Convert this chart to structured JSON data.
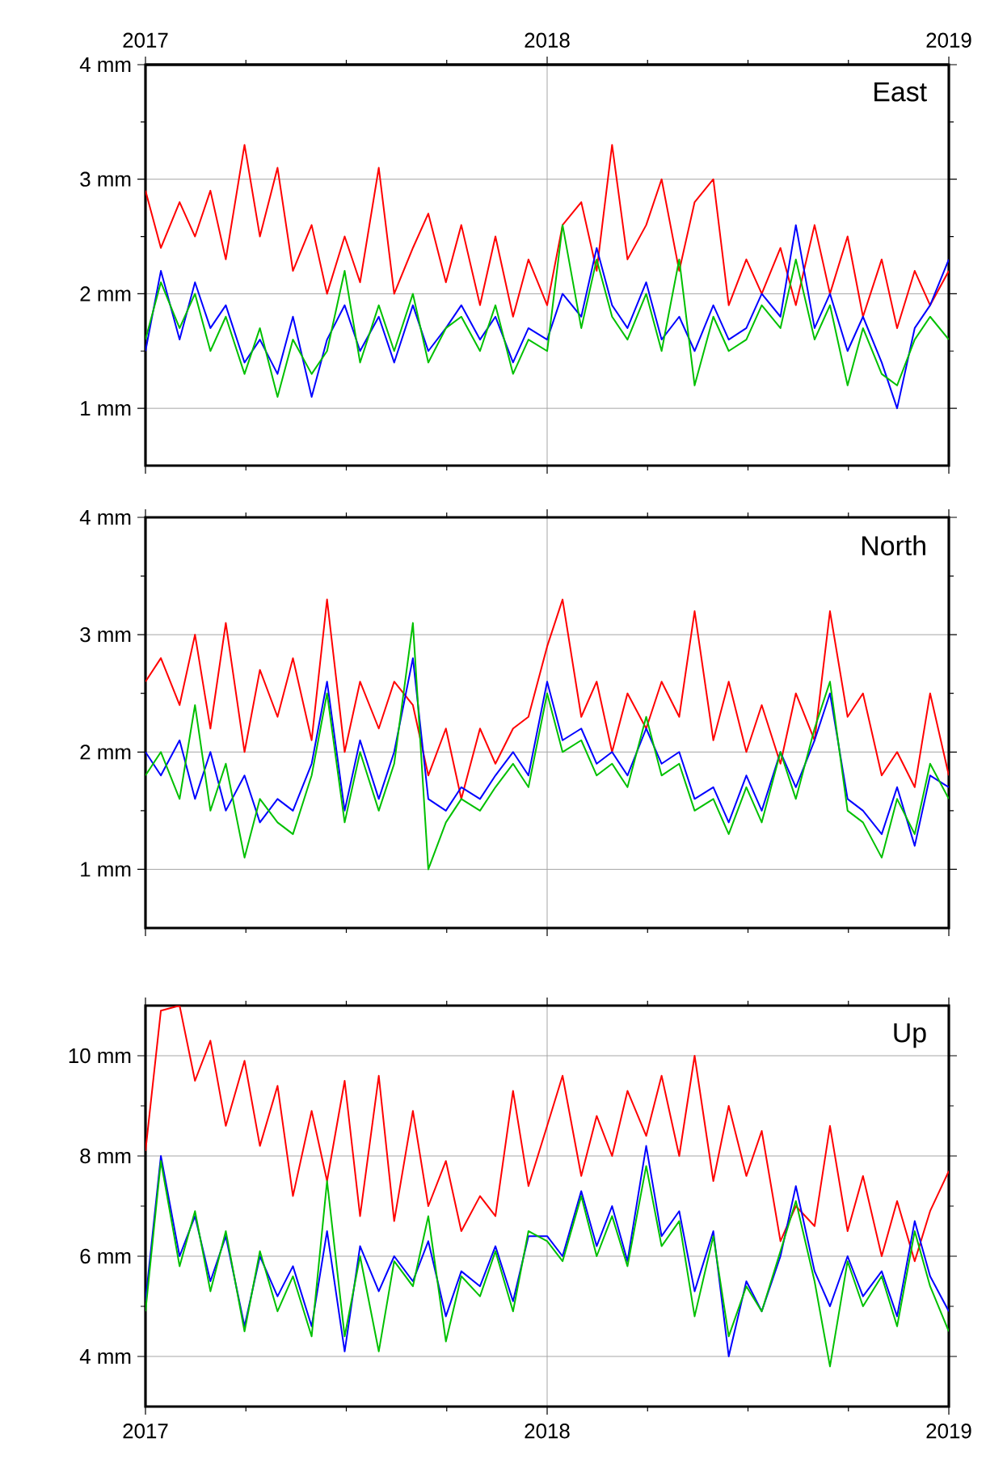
{
  "chart_data": [
    {
      "type": "line",
      "title": "East",
      "x": [
        "2017-01-01",
        "2017-01-15",
        "2017-02-01",
        "2017-02-15",
        "2017-03-01",
        "2017-03-15",
        "2017-04-01",
        "2017-04-15",
        "2017-05-01",
        "2017-05-15",
        "2017-06-01",
        "2017-06-15",
        "2017-07-01",
        "2017-07-15",
        "2017-08-01",
        "2017-08-15",
        "2017-09-01",
        "2017-09-15",
        "2017-10-01",
        "2017-10-15",
        "2017-11-01",
        "2017-11-15",
        "2017-12-01",
        "2017-12-15",
        "2018-01-01",
        "2018-01-15",
        "2018-02-01",
        "2018-02-15",
        "2018-03-01",
        "2018-03-15",
        "2018-04-01",
        "2018-04-15",
        "2018-05-01",
        "2018-05-15",
        "2018-06-01",
        "2018-06-15",
        "2018-07-01",
        "2018-07-15",
        "2018-08-01",
        "2018-08-15",
        "2018-09-01",
        "2018-09-15",
        "2018-10-01",
        "2018-10-15",
        "2018-11-01",
        "2018-11-15",
        "2018-12-01",
        "2018-12-15",
        "2019-01-01"
      ],
      "series": [
        {
          "color": "#ff0000",
          "values": [
            2.9,
            2.4,
            2.8,
            2.5,
            2.9,
            2.3,
            3.3,
            2.5,
            3.1,
            2.2,
            2.6,
            2.0,
            2.5,
            2.1,
            3.1,
            2.0,
            2.4,
            2.7,
            2.1,
            2.6,
            1.9,
            2.5,
            1.8,
            2.3,
            1.9,
            2.6,
            2.8,
            2.2,
            3.3,
            2.3,
            2.6,
            3.0,
            2.2,
            2.8,
            3.0,
            1.9,
            2.3,
            2.0,
            2.4,
            1.9,
            2.6,
            2.0,
            2.5,
            1.8,
            2.3,
            1.7,
            2.2,
            1.9,
            2.2
          ]
        },
        {
          "color": "#0000ff",
          "values": [
            1.5,
            2.2,
            1.6,
            2.1,
            1.7,
            1.9,
            1.4,
            1.6,
            1.3,
            1.8,
            1.1,
            1.6,
            1.9,
            1.5,
            1.8,
            1.4,
            1.9,
            1.5,
            1.7,
            1.9,
            1.6,
            1.8,
            1.4,
            1.7,
            1.6,
            2.0,
            1.8,
            2.4,
            1.9,
            1.7,
            2.1,
            1.6,
            1.8,
            1.5,
            1.9,
            1.6,
            1.7,
            2.0,
            1.8,
            2.6,
            1.7,
            2.0,
            1.5,
            1.8,
            1.4,
            1.0,
            1.7,
            1.9,
            2.3
          ]
        },
        {
          "color": "#00c000",
          "values": [
            1.6,
            2.1,
            1.7,
            2.0,
            1.5,
            1.8,
            1.3,
            1.7,
            1.1,
            1.6,
            1.3,
            1.5,
            2.2,
            1.4,
            1.9,
            1.5,
            2.0,
            1.4,
            1.7,
            1.8,
            1.5,
            1.9,
            1.3,
            1.6,
            1.5,
            2.6,
            1.7,
            2.3,
            1.8,
            1.6,
            2.0,
            1.5,
            2.3,
            1.2,
            1.8,
            1.5,
            1.6,
            1.9,
            1.7,
            2.3,
            1.6,
            1.9,
            1.2,
            1.7,
            1.3,
            1.2,
            1.6,
            1.8,
            1.6
          ]
        }
      ],
      "xlim": [
        "2017-01-01",
        "2019-01-01"
      ],
      "xticks": [
        {
          "value": "2017-01-01",
          "label": null
        },
        {
          "value": "2018-01-01",
          "label": null
        },
        {
          "value": "2019-01-01",
          "label": null
        }
      ],
      "x2lim": [
        "2017-01-01",
        "2019-01-01"
      ],
      "x2ticks": [
        {
          "value": "2017-01-01",
          "label": "2017"
        },
        {
          "value": "2018-01-01",
          "label": "2018"
        },
        {
          "value": "2019-01-01",
          "label": "2019"
        }
      ],
      "ylim": [
        0.5,
        4
      ],
      "yticks": [
        {
          "value": 1,
          "label": "1 mm"
        },
        {
          "value": 2,
          "label": "2 mm"
        },
        {
          "value": 3,
          "label": "3 mm"
        },
        {
          "value": 4,
          "label": "4 mm"
        }
      ],
      "tick_labels": "y",
      "grid": true,
      "legend": false,
      "marker": "none",
      "line_style": "solid"
    },
    {
      "type": "line",
      "title": "North",
      "x": [
        "2017-01-01",
        "2017-01-15",
        "2017-02-01",
        "2017-02-15",
        "2017-03-01",
        "2017-03-15",
        "2017-04-01",
        "2017-04-15",
        "2017-05-01",
        "2017-05-15",
        "2017-06-01",
        "2017-06-15",
        "2017-07-01",
        "2017-07-15",
        "2017-08-01",
        "2017-08-15",
        "2017-09-01",
        "2017-09-15",
        "2017-10-01",
        "2017-10-15",
        "2017-11-01",
        "2017-11-15",
        "2017-12-01",
        "2017-12-15",
        "2018-01-01",
        "2018-01-15",
        "2018-02-01",
        "2018-02-15",
        "2018-03-01",
        "2018-03-15",
        "2018-04-01",
        "2018-04-15",
        "2018-05-01",
        "2018-05-15",
        "2018-06-01",
        "2018-06-15",
        "2018-07-01",
        "2018-07-15",
        "2018-08-01",
        "2018-08-15",
        "2018-09-01",
        "2018-09-15",
        "2018-10-01",
        "2018-10-15",
        "2018-11-01",
        "2018-11-15",
        "2018-12-01",
        "2018-12-15",
        "2019-01-01"
      ],
      "series": [
        {
          "color": "#ff0000",
          "values": [
            2.6,
            2.8,
            2.4,
            3.0,
            2.2,
            3.1,
            2.0,
            2.7,
            2.3,
            2.8,
            2.1,
            3.3,
            2.0,
            2.6,
            2.2,
            2.6,
            2.4,
            1.8,
            2.2,
            1.6,
            2.2,
            1.9,
            2.2,
            2.3,
            2.9,
            3.3,
            2.3,
            2.6,
            2.0,
            2.5,
            2.2,
            2.6,
            2.3,
            3.2,
            2.1,
            2.6,
            2.0,
            2.4,
            1.9,
            2.5,
            2.1,
            3.2,
            2.3,
            2.5,
            1.8,
            2.0,
            1.7,
            2.5,
            1.8
          ]
        },
        {
          "color": "#0000ff",
          "values": [
            2.0,
            1.8,
            2.1,
            1.6,
            2.0,
            1.5,
            1.8,
            1.4,
            1.6,
            1.5,
            1.9,
            2.6,
            1.5,
            2.1,
            1.6,
            2.0,
            2.8,
            1.6,
            1.5,
            1.7,
            1.6,
            1.8,
            2.0,
            1.8,
            2.6,
            2.1,
            2.2,
            1.9,
            2.0,
            1.8,
            2.2,
            1.9,
            2.0,
            1.6,
            1.7,
            1.4,
            1.8,
            1.5,
            2.0,
            1.7,
            2.1,
            2.5,
            1.6,
            1.5,
            1.3,
            1.7,
            1.2,
            1.8,
            1.7
          ]
        },
        {
          "color": "#00c000",
          "values": [
            1.8,
            2.0,
            1.6,
            2.4,
            1.5,
            1.9,
            1.1,
            1.6,
            1.4,
            1.3,
            1.8,
            2.5,
            1.4,
            2.0,
            1.5,
            1.9,
            3.1,
            1.0,
            1.4,
            1.6,
            1.5,
            1.7,
            1.9,
            1.7,
            2.5,
            2.0,
            2.1,
            1.8,
            1.9,
            1.7,
            2.3,
            1.8,
            1.9,
            1.5,
            1.6,
            1.3,
            1.7,
            1.4,
            2.0,
            1.6,
            2.2,
            2.6,
            1.5,
            1.4,
            1.1,
            1.6,
            1.3,
            1.9,
            1.6
          ]
        }
      ],
      "xlim": [
        "2017-01-01",
        "2019-01-01"
      ],
      "xticks": [
        {
          "value": "2017-01-01",
          "label": null
        },
        {
          "value": "2018-01-01",
          "label": null
        },
        {
          "value": "2019-01-01",
          "label": null
        }
      ],
      "ylim": [
        0.5,
        4
      ],
      "yticks": [
        {
          "value": 1,
          "label": "1 mm"
        },
        {
          "value": 2,
          "label": "2 mm"
        },
        {
          "value": 3,
          "label": "3 mm"
        },
        {
          "value": 4,
          "label": "4 mm"
        }
      ],
      "tick_labels": "y",
      "grid": true,
      "legend": false,
      "marker": "none",
      "line_style": "solid"
    },
    {
      "type": "line",
      "title": "Up",
      "x": [
        "2017-01-01",
        "2017-01-15",
        "2017-02-01",
        "2017-02-15",
        "2017-03-01",
        "2017-03-15",
        "2017-04-01",
        "2017-04-15",
        "2017-05-01",
        "2017-05-15",
        "2017-06-01",
        "2017-06-15",
        "2017-07-01",
        "2017-07-15",
        "2017-08-01",
        "2017-08-15",
        "2017-09-01",
        "2017-09-15",
        "2017-10-01",
        "2017-10-15",
        "2017-11-01",
        "2017-11-15",
        "2017-12-01",
        "2017-12-15",
        "2018-01-01",
        "2018-01-15",
        "2018-02-01",
        "2018-02-15",
        "2018-03-01",
        "2018-03-15",
        "2018-04-01",
        "2018-04-15",
        "2018-05-01",
        "2018-05-15",
        "2018-06-01",
        "2018-06-15",
        "2018-07-01",
        "2018-07-15",
        "2018-08-01",
        "2018-08-15",
        "2018-09-01",
        "2018-09-15",
        "2018-10-01",
        "2018-10-15",
        "2018-11-01",
        "2018-11-15",
        "2018-12-01",
        "2018-12-15",
        "2019-01-01"
      ],
      "series": [
        {
          "color": "#ff0000",
          "values": [
            8.1,
            10.9,
            11.0,
            9.5,
            10.3,
            8.6,
            9.9,
            8.2,
            9.4,
            7.2,
            8.9,
            7.5,
            9.5,
            6.8,
            9.6,
            6.7,
            8.9,
            7.0,
            7.9,
            6.5,
            7.2,
            6.8,
            9.3,
            7.4,
            8.6,
            9.6,
            7.6,
            8.8,
            8.0,
            9.3,
            8.4,
            9.6,
            8.0,
            10.0,
            7.5,
            9.0,
            7.6,
            8.5,
            6.3,
            7.0,
            6.6,
            8.6,
            6.5,
            7.6,
            6.0,
            7.1,
            5.9,
            6.9,
            7.7
          ]
        },
        {
          "color": "#0000ff",
          "values": [
            5.1,
            8.0,
            6.0,
            6.8,
            5.5,
            6.4,
            4.6,
            6.0,
            5.2,
            5.8,
            4.6,
            6.5,
            4.1,
            6.2,
            5.3,
            6.0,
            5.5,
            6.3,
            4.8,
            5.7,
            5.4,
            6.2,
            5.1,
            6.4,
            6.4,
            6.0,
            7.3,
            6.2,
            7.0,
            5.9,
            8.2,
            6.4,
            6.9,
            5.3,
            6.5,
            4.0,
            5.5,
            4.9,
            6.0,
            7.4,
            5.7,
            5.0,
            6.0,
            5.2,
            5.7,
            4.8,
            6.7,
            5.6,
            4.9
          ]
        },
        {
          "color": "#00c000",
          "values": [
            4.9,
            7.9,
            5.8,
            6.9,
            5.3,
            6.5,
            4.5,
            6.1,
            4.9,
            5.6,
            4.4,
            7.5,
            4.4,
            6.0,
            4.1,
            5.9,
            5.4,
            6.8,
            4.3,
            5.6,
            5.2,
            6.1,
            4.9,
            6.5,
            6.3,
            5.9,
            7.2,
            6.0,
            6.8,
            5.8,
            7.8,
            6.2,
            6.7,
            4.8,
            6.4,
            4.4,
            5.4,
            4.9,
            6.1,
            7.1,
            5.5,
            3.8,
            5.9,
            5.0,
            5.6,
            4.6,
            6.5,
            5.4,
            4.5
          ]
        }
      ],
      "xlim": [
        "2017-01-01",
        "2019-01-01"
      ],
      "xticks": [
        {
          "value": "2017-01-01",
          "label": "2017"
        },
        {
          "value": "2018-01-01",
          "label": "2018"
        },
        {
          "value": "2019-01-01",
          "label": "2019"
        }
      ],
      "ylim": [
        3,
        11
      ],
      "yticks": [
        {
          "value": 4,
          "label": "4 mm"
        },
        {
          "value": 6,
          "label": "6 mm"
        },
        {
          "value": 8,
          "label": "8 mm"
        },
        {
          "value": 10,
          "label": "10 mm"
        }
      ],
      "grid": true,
      "legend": false,
      "marker": "none",
      "line_style": "solid"
    }
  ]
}
